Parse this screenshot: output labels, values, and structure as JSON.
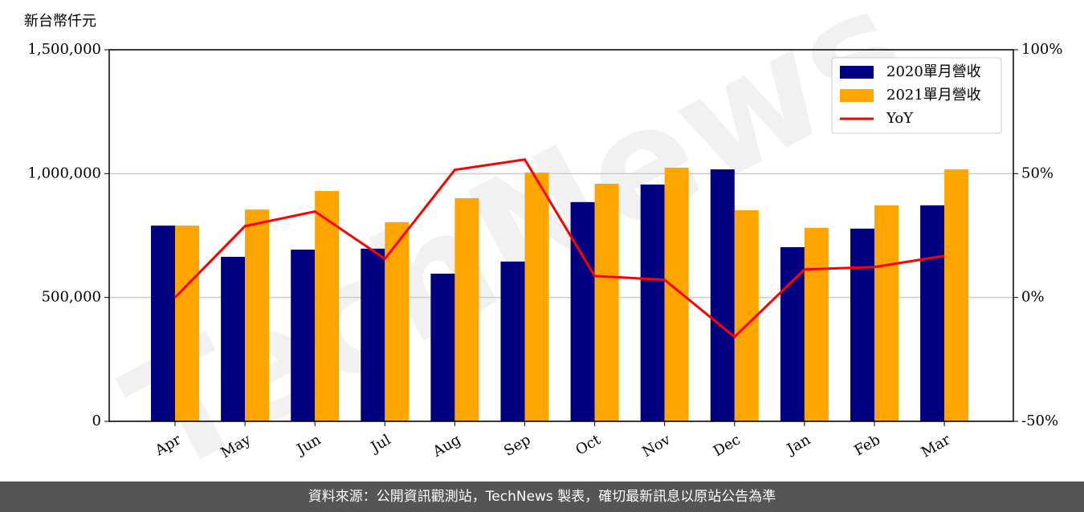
{
  "chart_data": {
    "type": "bar",
    "y_label": "新台幣仟元",
    "categories": [
      "Apr",
      "May",
      "Jun",
      "Jul",
      "Aug",
      "Sep",
      "Oct",
      "Nov",
      "Dec",
      "Jan",
      "Feb",
      "Mar"
    ],
    "series": [
      {
        "name": "2020單月營收",
        "color": "#000080",
        "values": [
          790000,
          664000,
          693000,
          697000,
          596000,
          645000,
          885000,
          956000,
          1017000,
          703000,
          778000,
          872000
        ]
      },
      {
        "name": "2021單月營收",
        "color": "#ffa500",
        "values": [
          790000,
          855000,
          930000,
          804000,
          901000,
          1004000,
          959000,
          1024000,
          852000,
          781000,
          872000,
          1017000
        ]
      },
      {
        "name": "YoY",
        "color": "#ff0000",
        "type": "line",
        "axis": "y2",
        "values": [
          0,
          28.8,
          34.7,
          15.6,
          51.5,
          55.7,
          8.7,
          7.1,
          -15.9,
          11.3,
          12.3,
          16.8
        ]
      }
    ],
    "ylim": [
      0,
      1500000
    ],
    "yticks": [
      0,
      {
        "value": 500000,
        "label": "500,000"
      },
      {
        "value": 1000000,
        "label": "1,000,000"
      },
      {
        "value": 1500000,
        "label": "1,500,000"
      }
    ],
    "y2lim": [
      -50,
      100
    ],
    "y2ticks": [
      {
        "value": -50,
        "label": "-50%"
      },
      {
        "value": 0,
        "label": "0%"
      },
      {
        "value": 50,
        "label": "50%"
      },
      {
        "value": 100,
        "label": "100%"
      }
    ],
    "grid": true,
    "legend": "upper right",
    "watermark": "TechNews",
    "footer": "資料來源：公開資訊觀測站，TechNews 製表，確切最新訊息以原站公告為準"
  }
}
